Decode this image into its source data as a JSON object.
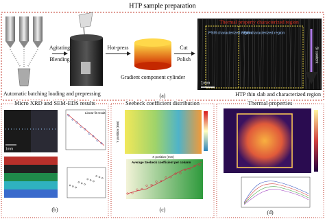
{
  "header": {
    "title": "HTP sample preparation"
  },
  "panel_a": {
    "steps": [
      "Agitating",
      "Blending",
      "Hot-press",
      "Cut",
      "Polish"
    ],
    "captions": [
      "Automatic batching loading and prepressing",
      "Gradient component cylinder",
      "HTP thin slab and characterized region"
    ],
    "label": "(a)",
    "slab": {
      "title": "Thermal property characterized region",
      "regions": [
        "PSM characterized region",
        "SEM characterized region"
      ],
      "axis": "Si content",
      "scale": "1mm"
    }
  },
  "panel_b": {
    "title": "Micro XRD and SEM-EDS results",
    "label": "(b)",
    "scale": "1mm",
    "legend": "Linear fit result"
  },
  "panel_c": {
    "title": "Seebeck coefficient distribution",
    "label": "(c)",
    "legend": "Average Seebeck coefficient per column",
    "xlabel": "X position (mm)",
    "ylabel": "Y position (mm)"
  },
  "panel_d": {
    "title": "Thermal properties",
    "label": "(d)"
  }
}
